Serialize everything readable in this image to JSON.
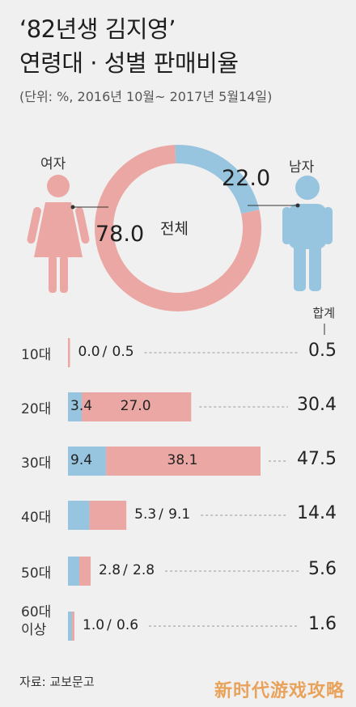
{
  "header": {
    "title_line1": "‘82년생 김지영’",
    "title_line2": "연령대 · 성별 판매비율",
    "unit_note": "(단위: %, 2016년 10월~ 2017년 5월14일)"
  },
  "colors": {
    "female": "#eba7a3",
    "male": "#97c4df",
    "dash": "#999999"
  },
  "legend": {
    "female": "여자",
    "male": "남자"
  },
  "donut": {
    "center_label": "전체",
    "female_label": "78.0",
    "male_label": "22.0"
  },
  "totals_header": "합계",
  "source": "자료: 교보문고",
  "watermark": "新时代游戏攻略",
  "chart_data": [
    {
      "type": "pie",
      "title": "전체",
      "series": [
        {
          "name": "여자",
          "value": 78.0
        },
        {
          "name": "남자",
          "value": 22.0
        }
      ]
    },
    {
      "type": "bar",
      "stacked": true,
      "orientation": "horizontal",
      "categories": [
        "10대",
        "20대",
        "30대",
        "40대",
        "50대",
        "60대 이상"
      ],
      "series": [
        {
          "name": "남자",
          "values": [
            0.0,
            3.4,
            9.4,
            5.3,
            2.8,
            1.0
          ]
        },
        {
          "name": "여자",
          "values": [
            0.5,
            27.0,
            38.1,
            9.1,
            2.8,
            0.6
          ]
        }
      ],
      "totals": [
        0.5,
        30.4,
        47.5,
        14.4,
        5.6,
        1.6
      ],
      "male_labels": [
        "0.0",
        "3.4",
        "9.4",
        "5.3",
        "2.8",
        "1.0"
      ],
      "female_labels": [
        "0.5",
        "27.0",
        "38.1",
        "9.1",
        "2.8",
        "0.6"
      ],
      "total_labels": [
        "0.5",
        "30.4",
        "47.5",
        "14.4",
        "5.6",
        "1.6"
      ],
      "label_style": [
        "outside",
        "inside",
        "inside",
        "outside",
        "outside",
        "outside"
      ]
    }
  ]
}
